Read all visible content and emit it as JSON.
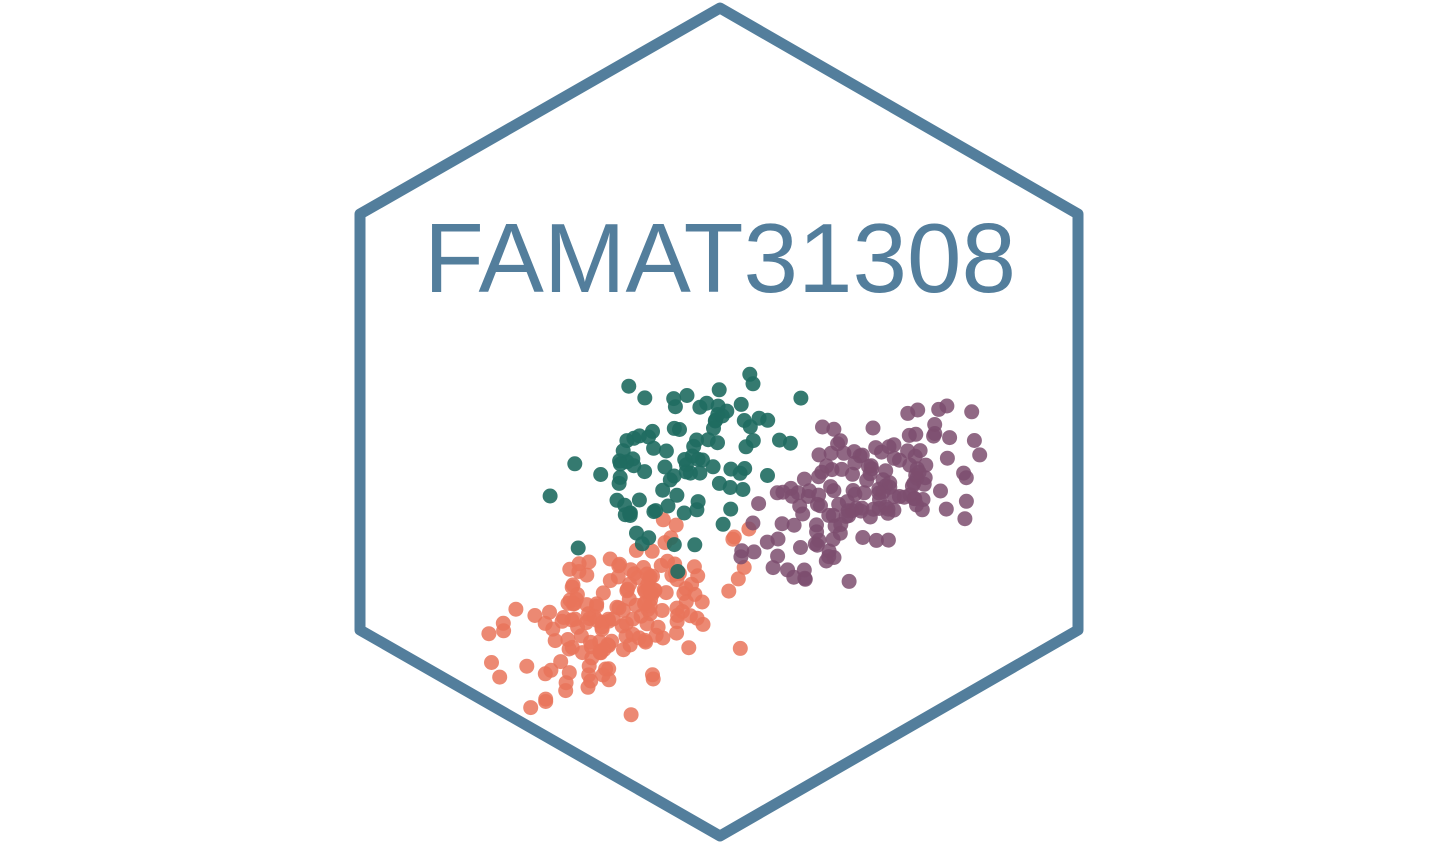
{
  "logo": {
    "title": "FAMAT31308",
    "border_color": "#537e9c",
    "text_color": "#537e9c"
  },
  "clusters": [
    {
      "name": "",
      "color": "#e9745a",
      "opacity": 0.85,
      "center": [
        620,
        615
      ],
      "spread": [
        52,
        38
      ],
      "count": 170,
      "seed": 11
    },
    {
      "name": "",
      "color": "#1f6b60",
      "opacity": 0.9,
      "center": [
        680,
        460
      ],
      "spread": [
        48,
        36
      ],
      "count": 95,
      "seed": 23
    },
    {
      "name": "",
      "color": "#7d4d6e",
      "opacity": 0.85,
      "center": [
        860,
        495
      ],
      "spread": [
        50,
        34
      ],
      "count": 150,
      "seed": 37
    }
  ]
}
